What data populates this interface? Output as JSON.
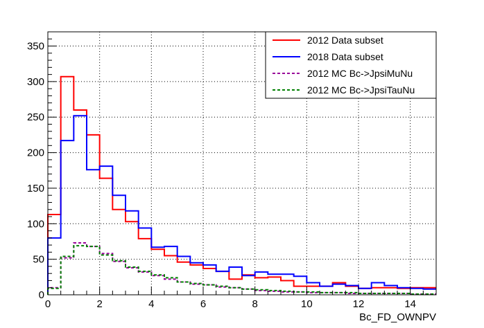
{
  "chart_data": {
    "type": "line",
    "subtype": "step-histogram",
    "title": "",
    "xlabel": "Bc_FD_OWNPV",
    "ylabel": "",
    "xlim": [
      0,
      15
    ],
    "ylim": [
      0,
      370
    ],
    "xticks": [
      0,
      2,
      4,
      6,
      8,
      10,
      12,
      14
    ],
    "yticks": [
      0,
      50,
      100,
      150,
      200,
      250,
      300,
      350
    ],
    "grid": true,
    "legend_position": "top-right",
    "bin_edges": [
      0,
      0.5,
      1,
      1.5,
      2,
      2.5,
      3,
      3.5,
      4,
      4.5,
      5,
      5.5,
      6,
      6.5,
      7,
      7.5,
      8,
      8.5,
      9,
      9.5,
      10,
      10.5,
      11,
      11.5,
      12,
      12.5,
      13,
      13.5,
      14,
      14.5,
      15
    ],
    "series": [
      {
        "name": "2012 Data subset",
        "color": "#ff0000",
        "style": "solid",
        "values": [
          113,
          307,
          260,
          225,
          164,
          120,
          103,
          79,
          64,
          55,
          46,
          42,
          37,
          33,
          22,
          28,
          24,
          25,
          20,
          12,
          12,
          12,
          17,
          12,
          9,
          10,
          10,
          9,
          10,
          10
        ]
      },
      {
        "name": "2018 Data subset",
        "color": "#0000ff",
        "style": "solid",
        "values": [
          80,
          217,
          252,
          176,
          181,
          140,
          118,
          94,
          67,
          68,
          54,
          45,
          42,
          33,
          39,
          27,
          32,
          29,
          29,
          26,
          17,
          12,
          15,
          13,
          9,
          17,
          13,
          10,
          9,
          8
        ]
      },
      {
        "name": "2012 MC Bc->JpsiMuNu",
        "color": "#990099",
        "style": "dashed",
        "values": [
          10,
          52,
          73,
          68,
          58,
          47,
          38,
          32,
          27,
          22,
          18,
          15,
          14,
          11,
          10,
          8,
          6,
          5,
          4,
          4,
          3,
          3,
          3,
          2,
          2,
          2,
          2,
          2,
          1,
          1
        ]
      },
      {
        "name": "2012 MC Bc->JpsiTauNu",
        "color": "#008000",
        "style": "dashed",
        "values": [
          9,
          54,
          69,
          68,
          56,
          48,
          39,
          33,
          28,
          24,
          18,
          16,
          14,
          12,
          10,
          8,
          7,
          6,
          5,
          4,
          4,
          3,
          3,
          3,
          2,
          2,
          2,
          2,
          1,
          1
        ]
      }
    ]
  }
}
